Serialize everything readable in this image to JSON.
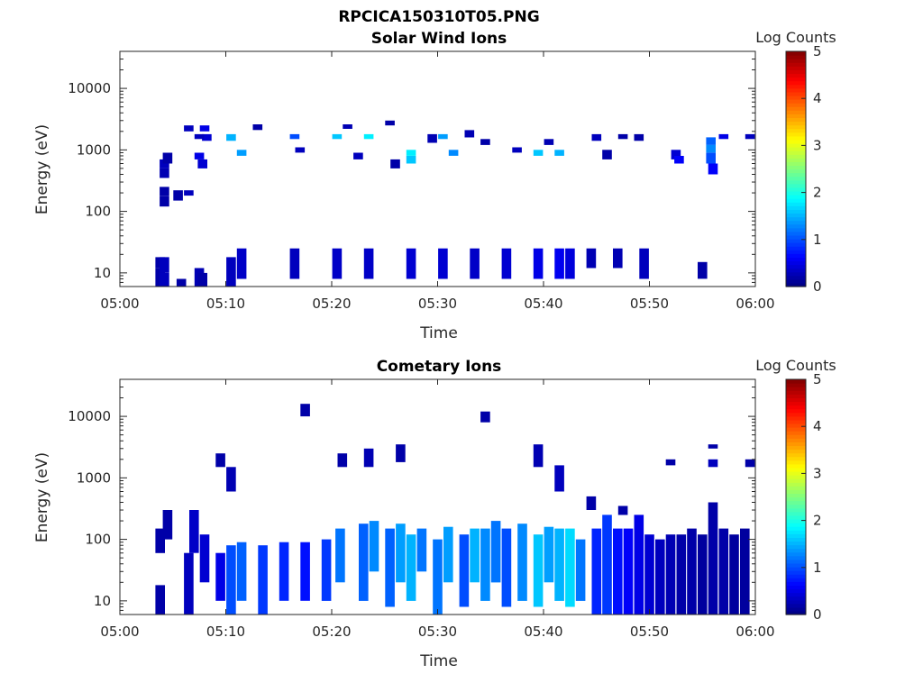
{
  "figure": {
    "filename_title": "RPCICA150310T05.PNG"
  },
  "colormap": "jet",
  "chart_data": [
    {
      "type": "heatmap",
      "title": "Solar Wind Ions",
      "xlabel": "Time",
      "ylabel": "Energy (eV)",
      "x_tick_labels": [
        "05:00",
        "05:10",
        "05:20",
        "05:30",
        "05:40",
        "05:50",
        "06:00"
      ],
      "x_ticks_min": [
        0,
        10,
        20,
        30,
        40,
        50,
        60
      ],
      "xlim_min": [
        0,
        60
      ],
      "y_scale": "log",
      "y_tick_labels": [
        "10",
        "100",
        "1000",
        "10000"
      ],
      "y_ticks": [
        10,
        100,
        1000,
        10000
      ],
      "ylim": [
        6,
        40000
      ],
      "colorbar": {
        "label": "Log Counts",
        "ticks": [
          "0",
          "1",
          "2",
          "3",
          "4",
          "5"
        ],
        "range": [
          0,
          5
        ]
      },
      "cells": [
        [
          3.8,
          6,
          12,
          0.2
        ],
        [
          3.8,
          12,
          18,
          0.2
        ],
        [
          4.2,
          6,
          10,
          0.3
        ],
        [
          4.2,
          10,
          18,
          0.3
        ],
        [
          5.8,
          6,
          8,
          0.2
        ],
        [
          7.5,
          6,
          12,
          0.25
        ],
        [
          7.8,
          6,
          10,
          0.2
        ],
        [
          4.2,
          500,
          700,
          0.3
        ],
        [
          4.2,
          350,
          500,
          0.25
        ],
        [
          4.5,
          600,
          900,
          0.2
        ],
        [
          4.2,
          180,
          250,
          0.2
        ],
        [
          4.2,
          120,
          180,
          0.2
        ],
        [
          5.5,
          150,
          220,
          0.2
        ],
        [
          6.5,
          180,
          220,
          0.3
        ],
        [
          7.5,
          700,
          900,
          0.5
        ],
        [
          7.8,
          500,
          700,
          0.4
        ],
        [
          8.0,
          2000,
          2500,
          0.5
        ],
        [
          8.2,
          1400,
          1800,
          0.4
        ],
        [
          6.5,
          2000,
          2500,
          0.3
        ],
        [
          7.5,
          1500,
          1800,
          0.3
        ],
        [
          10.5,
          1400,
          1800,
          1.5
        ],
        [
          11.5,
          800,
          1000,
          1.4
        ],
        [
          16.5,
          1500,
          1800,
          1.0
        ],
        [
          20.5,
          1500,
          1800,
          1.6
        ],
        [
          23.5,
          1500,
          1800,
          1.8
        ],
        [
          27.5,
          800,
          1000,
          1.8
        ],
        [
          27.5,
          600,
          800,
          1.6
        ],
        [
          30.5,
          1500,
          1800,
          1.4
        ],
        [
          31.5,
          800,
          1000,
          1.3
        ],
        [
          39.5,
          800,
          1000,
          1.6
        ],
        [
          41.5,
          800,
          1000,
          1.5
        ],
        [
          45.0,
          1400,
          1800,
          0.3
        ],
        [
          46.0,
          700,
          1000,
          0.2
        ],
        [
          47.5,
          1500,
          1800,
          0.2
        ],
        [
          49.0,
          1400,
          1800,
          0.2
        ],
        [
          52.5,
          700,
          1000,
          0.4
        ],
        [
          52.8,
          600,
          800,
          0.6
        ],
        [
          55.8,
          1200,
          1600,
          1.1
        ],
        [
          55.8,
          900,
          1200,
          1.3
        ],
        [
          55.8,
          600,
          900,
          1.0
        ],
        [
          56.0,
          400,
          600,
          0.6
        ],
        [
          57.0,
          1500,
          1800,
          0.5
        ],
        [
          59.5,
          1500,
          1800,
          0.3
        ],
        [
          10.5,
          6,
          18,
          0.3
        ],
        [
          11.5,
          8,
          25,
          0.35
        ],
        [
          16.5,
          8,
          25,
          0.3
        ],
        [
          20.5,
          8,
          25,
          0.35
        ],
        [
          23.5,
          8,
          25,
          0.35
        ],
        [
          27.5,
          8,
          25,
          0.4
        ],
        [
          30.5,
          8,
          25,
          0.4
        ],
        [
          33.5,
          8,
          25,
          0.35
        ],
        [
          36.5,
          8,
          25,
          0.4
        ],
        [
          39.5,
          8,
          25,
          0.5
        ],
        [
          41.5,
          8,
          25,
          0.55
        ],
        [
          42.5,
          8,
          25,
          0.45
        ],
        [
          44.5,
          12,
          25,
          0.25
        ],
        [
          47.0,
          12,
          25,
          0.25
        ],
        [
          49.5,
          8,
          25,
          0.3
        ],
        [
          55.0,
          8,
          15,
          0.2
        ],
        [
          29.5,
          1300,
          1800,
          0.25
        ],
        [
          33.0,
          1600,
          2100,
          0.25
        ],
        [
          21.5,
          2200,
          2600,
          0.25
        ],
        [
          25.5,
          2500,
          3000,
          0.2
        ],
        [
          13.0,
          2100,
          2600,
          0.2
        ],
        [
          17.0,
          900,
          1100,
          0.3
        ],
        [
          22.5,
          700,
          900,
          0.3
        ],
        [
          26.0,
          500,
          700,
          0.2
        ],
        [
          34.5,
          1200,
          1500,
          0.2
        ],
        [
          37.5,
          900,
          1100,
          0.3
        ],
        [
          40.5,
          1200,
          1500,
          0.25
        ]
      ]
    },
    {
      "type": "heatmap",
      "title": "Cometary Ions",
      "xlabel": "Time",
      "ylabel": "Energy (eV)",
      "x_tick_labels": [
        "05:00",
        "05:10",
        "05:20",
        "05:30",
        "05:40",
        "05:50",
        "06:00"
      ],
      "x_ticks_min": [
        0,
        10,
        20,
        30,
        40,
        50,
        60
      ],
      "xlim_min": [
        0,
        60
      ],
      "y_scale": "log",
      "y_tick_labels": [
        "10",
        "100",
        "1000",
        "10000"
      ],
      "y_ticks": [
        10,
        100,
        1000,
        10000
      ],
      "ylim": [
        6,
        40000
      ],
      "colorbar": {
        "label": "Log Counts",
        "ticks": [
          "0",
          "1",
          "2",
          "3",
          "4",
          "5"
        ],
        "range": [
          0,
          5
        ]
      },
      "cells": [
        [
          3.8,
          6,
          18,
          0.2
        ],
        [
          3.8,
          60,
          150,
          0.2
        ],
        [
          4.5,
          100,
          300,
          0.2
        ],
        [
          6.5,
          6,
          60,
          0.3
        ],
        [
          7.0,
          60,
          300,
          0.35
        ],
        [
          8.0,
          20,
          120,
          0.4
        ],
        [
          9.5,
          10,
          60,
          0.5
        ],
        [
          10.5,
          6,
          80,
          1.0
        ],
        [
          11.5,
          10,
          90,
          1.1
        ],
        [
          13.5,
          6,
          80,
          0.9
        ],
        [
          15.5,
          10,
          90,
          0.8
        ],
        [
          17.5,
          10,
          90,
          0.7
        ],
        [
          19.5,
          10,
          100,
          0.9
        ],
        [
          20.8,
          20,
          150,
          1.2
        ],
        [
          23.0,
          10,
          180,
          1.1
        ],
        [
          24.0,
          30,
          200,
          1.3
        ],
        [
          25.5,
          8,
          150,
          1.1
        ],
        [
          26.5,
          20,
          180,
          1.4
        ],
        [
          27.5,
          10,
          120,
          1.5
        ],
        [
          28.5,
          30,
          150,
          1.2
        ],
        [
          30.0,
          6,
          100,
          1.2
        ],
        [
          31.0,
          20,
          160,
          1.4
        ],
        [
          32.5,
          8,
          120,
          1.0
        ],
        [
          33.5,
          20,
          150,
          1.5
        ],
        [
          34.5,
          10,
          150,
          1.3
        ],
        [
          35.5,
          20,
          200,
          1.2
        ],
        [
          36.5,
          8,
          150,
          1.0
        ],
        [
          38.0,
          10,
          180,
          1.3
        ],
        [
          39.5,
          8,
          120,
          1.6
        ],
        [
          40.5,
          20,
          160,
          1.4
        ],
        [
          41.5,
          10,
          150,
          1.5
        ],
        [
          42.5,
          8,
          150,
          1.7
        ],
        [
          43.5,
          10,
          100,
          1.2
        ],
        [
          45.0,
          6,
          150,
          0.8
        ],
        [
          46.0,
          6,
          250,
          0.9
        ],
        [
          47.0,
          6,
          150,
          0.7
        ],
        [
          48.0,
          6,
          150,
          0.6
        ],
        [
          49.0,
          6,
          250,
          0.5
        ],
        [
          50.0,
          6,
          120,
          0.4
        ],
        [
          51.0,
          6,
          100,
          0.3
        ],
        [
          52.0,
          6,
          120,
          0.25
        ],
        [
          53.0,
          6,
          120,
          0.2
        ],
        [
          54.0,
          6,
          150,
          0.2
        ],
        [
          55.0,
          6,
          120,
          0.15
        ],
        [
          56.0,
          6,
          400,
          0.2
        ],
        [
          57.0,
          6,
          150,
          0.2
        ],
        [
          58.0,
          6,
          120,
          0.15
        ],
        [
          59.0,
          6,
          150,
          0.15
        ],
        [
          9.5,
          1500,
          2500,
          0.2
        ],
        [
          10.5,
          600,
          1500,
          0.25
        ],
        [
          17.5,
          10000,
          16000,
          0.2
        ],
        [
          21.0,
          1500,
          2500,
          0.2
        ],
        [
          23.5,
          1500,
          3000,
          0.25
        ],
        [
          26.5,
          1800,
          3500,
          0.2
        ],
        [
          34.5,
          8000,
          12000,
          0.2
        ],
        [
          39.5,
          1500,
          3500,
          0.25
        ],
        [
          41.5,
          600,
          1600,
          0.3
        ],
        [
          52.0,
          1600,
          2000,
          0.2
        ],
        [
          56.0,
          3000,
          3500,
          0.2
        ],
        [
          56.0,
          1500,
          2000,
          0.3
        ],
        [
          59.5,
          1500,
          2000,
          0.2
        ],
        [
          44.5,
          300,
          500,
          0.2
        ],
        [
          47.5,
          250,
          350,
          0.2
        ]
      ]
    }
  ]
}
